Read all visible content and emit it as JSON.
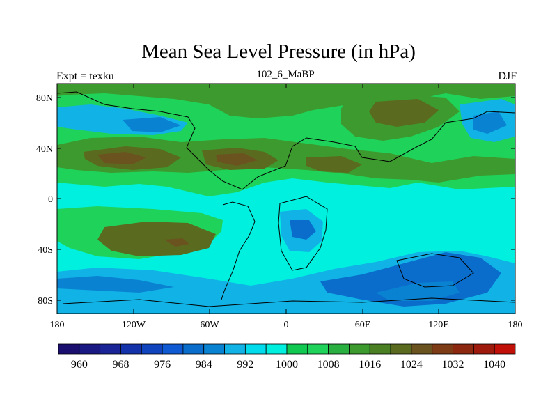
{
  "title": "Mean Sea Level Pressure (in hPa)",
  "left_subtitle": "Expt = texku",
  "center_subtitle": "102_6_MaBP",
  "right_subtitle": "DJF",
  "colors": {
    "low_deep_blue": "#0a6dcc",
    "light_blue": "#11b2e5",
    "cyan": "#00f0e0",
    "green": "#1fd35a",
    "olive_green": "#3d9a2e",
    "dark_olive": "#5a6a1e",
    "brown": "#6b5320",
    "coastline": "#000000"
  },
  "chart_data": {
    "type": "heatmap",
    "title": "Mean Sea Level Pressure (in hPa)",
    "units": "hPa",
    "x_axis": {
      "range": [
        -180,
        180
      ],
      "tick_labels": [
        "180",
        "120W",
        "60W",
        "0",
        "60E",
        "120E",
        "180"
      ]
    },
    "y_axis": {
      "range": [
        -90,
        90
      ],
      "tick_labels": [
        "80N",
        "40N",
        "0",
        "40S",
        "80S"
      ]
    },
    "colorbar": {
      "levels": [
        956,
        960,
        964,
        968,
        972,
        976,
        980,
        984,
        988,
        992,
        996,
        1000,
        1004,
        1008,
        1012,
        1016,
        1020,
        1024,
        1028,
        1032,
        1036,
        1040,
        1044
      ],
      "colors": [
        "#1a0e6e",
        "#1a1882",
        "#1a2496",
        "#1432aa",
        "#0f44be",
        "#0f5ad2",
        "#0a6dcc",
        "#0a82d2",
        "#11b2e5",
        "#00dcec",
        "#00f0e0",
        "#11c850",
        "#1fd35a",
        "#2ab040",
        "#3d9a2e",
        "#4a7f24",
        "#5a6a1e",
        "#6b5320",
        "#7e3c16",
        "#8c2810",
        "#9e1a0c",
        "#c01008"
      ],
      "labels": [
        "960",
        "968",
        "976",
        "984",
        "992",
        "1000",
        "1008",
        "1016",
        "1024",
        "1032",
        "1040"
      ]
    }
  }
}
